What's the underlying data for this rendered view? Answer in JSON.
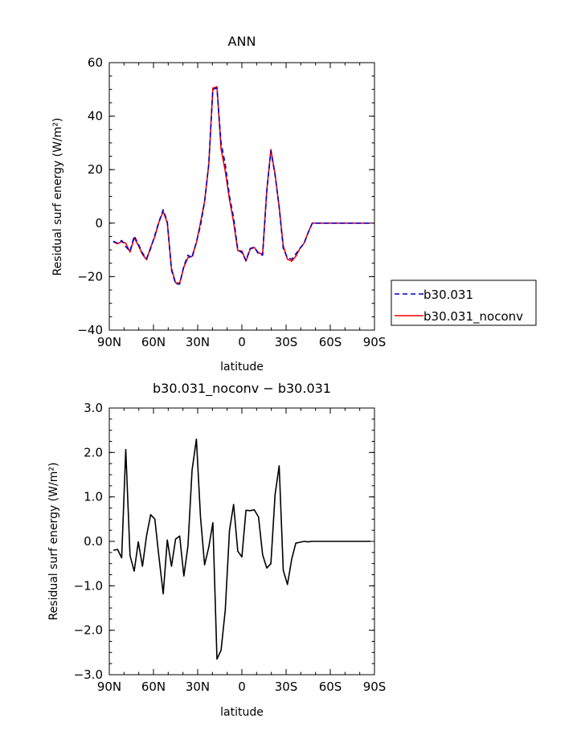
{
  "chart_data": [
    {
      "type": "line",
      "title": "ANN",
      "xlabel": "latitude",
      "ylabel": "Residual surf energy (W/m²)",
      "xlim": [
        90,
        -90
      ],
      "ylim": [
        -40,
        60
      ],
      "xticks": [
        90,
        60,
        30,
        0,
        -30,
        -60,
        -90
      ],
      "xtick_labels": [
        "90N",
        "60N",
        "30N",
        "0",
        "30S",
        "60S",
        "90S"
      ],
      "yticks": [
        -40,
        -20,
        0,
        20,
        40,
        60
      ],
      "ytick_labels": [
        "−40",
        "−20",
        "0",
        "20",
        "40",
        "60"
      ],
      "legend_position": "right",
      "series": [
        {
          "name": "b30.031",
          "color": "#0000cc",
          "dash": "dashed",
          "x": [
            87.2,
            84.4,
            81.6,
            78.8,
            75.9,
            73.1,
            70.3,
            67.5,
            64.7,
            61.9,
            59.1,
            56.3,
            53.4,
            50.6,
            47.8,
            45.0,
            42.2,
            39.4,
            36.6,
            33.8,
            30.9,
            28.1,
            25.3,
            22.5,
            19.7,
            16.9,
            14.1,
            11.3,
            8.4,
            5.6,
            2.8,
            0.0,
            -2.8,
            -5.6,
            -8.4,
            -11.3,
            -14.1,
            -16.9,
            -19.7,
            -22.5,
            -25.3,
            -28.1,
            -30.9,
            -33.8,
            -36.6,
            -39.4,
            -42.2,
            -45.0,
            -47.8,
            -50.6,
            -53.4,
            -56.3,
            -59.1,
            -61.9,
            -64.7,
            -67.5,
            -70.3,
            -73.1,
            -75.9,
            -78.8,
            -81.6,
            -84.4,
            -87.2
          ],
          "values": [
            -6.8,
            -7.5,
            -6.5,
            -8.8,
            -10.5,
            -4.8,
            -7.8,
            -11.2,
            -13.2,
            -9.5,
            -4.5,
            0.5,
            5.0,
            0.5,
            -17.5,
            -22.7,
            -22.8,
            -16.0,
            -12.0,
            -13.0,
            -7.0,
            -1.0,
            8.0,
            22.0,
            50.0,
            50.5,
            30.0,
            22.0,
            10.0,
            2.0,
            -10.0,
            -11.0,
            -14.0,
            -9.5,
            -9.0,
            -11.5,
            -12.0,
            12.0,
            27.0,
            18.0,
            6.0,
            -9.5,
            -13.0,
            -13.5,
            -11.5,
            -9.5,
            -7.5,
            -3.5,
            0.0,
            0.0,
            0.0,
            0.0,
            0.0,
            0.0,
            0.0,
            0.0,
            0.0,
            0.0,
            0.0,
            0.0,
            0.0,
            0.0,
            0.0
          ]
        },
        {
          "name": "b30.031_noconv",
          "color": "#ee0000",
          "dash": "solid",
          "x": [
            87.2,
            84.4,
            81.6,
            78.8,
            75.9,
            73.1,
            70.3,
            67.5,
            64.7,
            61.9,
            59.1,
            56.3,
            53.4,
            50.6,
            47.8,
            45.0,
            42.2,
            39.4,
            36.6,
            33.8,
            30.9,
            28.1,
            25.3,
            22.5,
            19.7,
            16.9,
            14.1,
            11.3,
            8.4,
            5.6,
            2.8,
            0.0,
            -2.8,
            -5.6,
            -8.4,
            -11.3,
            -14.1,
            -16.9,
            -19.7,
            -22.5,
            -25.3,
            -28.1,
            -30.9,
            -33.8,
            -36.6,
            -39.4,
            -42.2,
            -45.0,
            -47.8,
            -50.6,
            -53.4,
            -56.3,
            -59.1,
            -61.9,
            -64.7,
            -67.5,
            -70.3,
            -73.1,
            -75.9,
            -78.8,
            -81.6,
            -84.4,
            -87.2
          ],
          "values": [
            -7.0,
            -7.7,
            -6.9,
            -7.5,
            -10.8,
            -5.5,
            -8.3,
            -11.7,
            -13.7,
            -9.0,
            -5.0,
            0.4,
            4.4,
            0.0,
            -17.0,
            -22.3,
            -22.4,
            -16.4,
            -12.9,
            -12.4,
            -7.4,
            0.2,
            8.2,
            22.0,
            50.5,
            51.0,
            27.7,
            19.5,
            8.8,
            0.4,
            -10.3,
            -10.4,
            -14.2,
            -9.7,
            -9.1,
            -11.1,
            -11.6,
            12.3,
            27.5,
            18.3,
            6.0,
            -8.5,
            -13.5,
            -14.2,
            -12.4,
            -9.5,
            -7.5,
            -3.5,
            0.0,
            0.0,
            0.0,
            0.0,
            0.0,
            0.0,
            0.0,
            0.0,
            0.0,
            0.0,
            0.0,
            0.0,
            0.0,
            0.0,
            0.0
          ]
        }
      ]
    },
    {
      "type": "line",
      "title": "b30.031_noconv − b30.031",
      "xlabel": "latitude",
      "ylabel": "Residual surf energy (W/m²)",
      "xlim": [
        90,
        -90
      ],
      "ylim": [
        -3.0,
        3.0
      ],
      "xticks": [
        90,
        60,
        30,
        0,
        -30,
        -60,
        -90
      ],
      "xtick_labels": [
        "90N",
        "60N",
        "30N",
        "0",
        "30S",
        "60S",
        "90S"
      ],
      "yticks": [
        -3.0,
        -2.0,
        -1.0,
        0.0,
        1.0,
        2.0,
        3.0
      ],
      "ytick_labels": [
        "−3.0",
        "−2.0",
        "−1.0",
        "0.0",
        "1.0",
        "2.0",
        "3.0"
      ],
      "series": [
        {
          "color": "#000000",
          "dash": "solid",
          "x": [
            87.2,
            84.4,
            81.6,
            78.8,
            75.9,
            73.1,
            70.3,
            67.5,
            64.7,
            61.9,
            59.1,
            56.3,
            53.4,
            50.6,
            47.8,
            45.0,
            42.2,
            39.4,
            36.6,
            33.8,
            30.9,
            28.1,
            25.3,
            22.5,
            19.7,
            16.9,
            14.1,
            11.3,
            8.4,
            5.6,
            2.8,
            0.0,
            -2.8,
            -5.6,
            -8.4,
            -11.3,
            -14.1,
            -16.9,
            -19.7,
            -22.5,
            -25.3,
            -28.1,
            -30.9,
            -33.8,
            -36.6,
            -39.4,
            -42.2,
            -45.0,
            -47.8,
            -50.6,
            -53.4,
            -56.3,
            -59.1,
            -61.9,
            -64.7,
            -67.5,
            -70.3,
            -73.1,
            -75.9,
            -78.8,
            -81.6,
            -84.4,
            -87.2
          ],
          "values": [
            -0.2,
            -0.18,
            -0.37,
            2.07,
            -0.32,
            -0.67,
            -0.01,
            -0.56,
            0.13,
            0.6,
            0.5,
            -0.35,
            -1.18,
            0.03,
            -0.56,
            0.05,
            0.12,
            -0.78,
            -0.1,
            1.6,
            2.3,
            0.55,
            -0.53,
            -0.13,
            0.42,
            -2.65,
            -2.45,
            -1.55,
            0.25,
            0.83,
            -0.22,
            -0.35,
            0.7,
            0.69,
            0.71,
            0.55,
            -0.3,
            -0.6,
            -0.5,
            1.05,
            1.7,
            -0.65,
            -0.97,
            -0.4,
            -0.04,
            -0.02,
            0.0,
            -0.01,
            0.0,
            0.0,
            0.0,
            0.0,
            0.0,
            0.0,
            0.0,
            0.0,
            0.0,
            0.0,
            0.0,
            0.0,
            0.0,
            0.0,
            0.0
          ]
        }
      ]
    }
  ]
}
